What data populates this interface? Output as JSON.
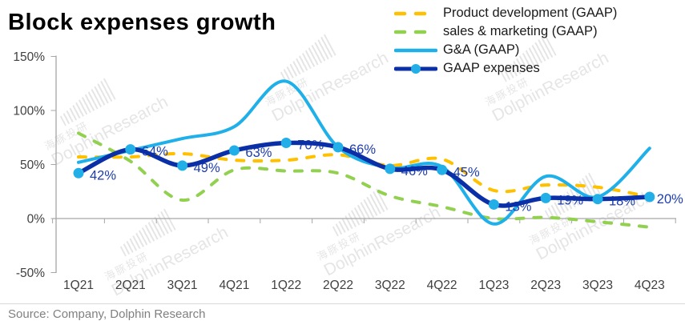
{
  "title": "Block expenses growth",
  "source_note": "Source: Company, Dolphin Research",
  "watermark": {
    "cn": "海豚投研",
    "en": "DolphinResearch"
  },
  "legend": [
    {
      "label": "Product development (GAAP)"
    },
    {
      "label": "sales & marketing (GAAP)"
    },
    {
      "label": "G&A (GAAP)"
    },
    {
      "label": "GAAP expenses"
    }
  ],
  "chart_data": {
    "type": "line",
    "title": "Block expenses growth",
    "categories": [
      "1Q21",
      "2Q21",
      "3Q21",
      "4Q21",
      "1Q22",
      "2Q22",
      "3Q22",
      "4Q22",
      "1Q23",
      "2Q23",
      "3Q23",
      "4Q23"
    ],
    "ylim": [
      -50,
      150
    ],
    "yticks": [
      {
        "value": 150,
        "label": "150%"
      },
      {
        "value": 100,
        "label": "100%"
      },
      {
        "value": 50,
        "label": "50%"
      },
      {
        "value": 0,
        "label": "0%"
      },
      {
        "value": -50,
        "label": "-50%"
      }
    ],
    "grid": false,
    "legend_position": "top-right",
    "series": [
      {
        "name": "Product development (GAAP)",
        "color": "#FFC000",
        "style": "dashed",
        "values": [
          57,
          57,
          60,
          54,
          54,
          59,
          49,
          55,
          26,
          31,
          29,
          20
        ]
      },
      {
        "name": "sales & marketing (GAAP)",
        "color": "#92D050",
        "style": "dashed",
        "values": [
          79,
          53,
          17,
          45,
          44,
          42,
          21,
          11,
          0,
          1,
          -3,
          -8
        ]
      },
      {
        "name": "G&A (GAAP)",
        "color": "#1FB0E9",
        "style": "solid",
        "values": [
          52,
          63,
          74,
          85,
          127,
          66,
          47,
          48,
          -5,
          39,
          20,
          65
        ]
      },
      {
        "name": "GAAP expenses",
        "color": "#0B2FA6",
        "style": "solid-marker",
        "marker_color": "#22AFE8",
        "label_color": "#1D3DAD",
        "values": [
          42,
          64,
          49,
          63,
          70,
          66,
          46,
          45,
          13,
          19,
          18,
          20
        ],
        "data_labels": [
          "42%",
          "64%",
          "49%",
          "63%",
          "70%",
          "66%",
          "46%",
          "45%",
          "13%",
          "19%",
          "18%",
          "20%"
        ]
      }
    ]
  }
}
